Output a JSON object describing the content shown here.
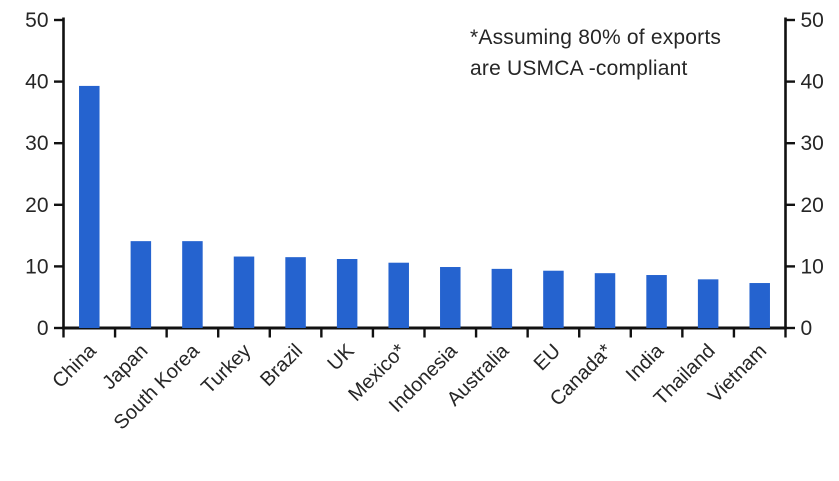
{
  "chart_data": {
    "type": "bar",
    "categories": [
      "China",
      "Japan",
      "South Korea",
      "Turkey",
      "Brazil",
      "UK",
      "Mexico*",
      "Indonesia",
      "Australia",
      "EU",
      "Canada*",
      "India",
      "Thailand",
      "Vietnam"
    ],
    "values": [
      39.3,
      14.1,
      14.1,
      11.6,
      11.5,
      11.2,
      10.6,
      9.9,
      9.6,
      9.3,
      8.9,
      8.6,
      7.9,
      7.3
    ],
    "title": "",
    "xlabel": "",
    "ylabel": "",
    "ylim": [
      0,
      50
    ],
    "yticks": [
      0,
      10,
      20,
      30,
      40,
      50
    ],
    "grid": false,
    "dual_axis": true,
    "legend": "none",
    "bar_color": "#2563cf",
    "axis_color": "#111111",
    "text_color": "#262626"
  },
  "annotation": {
    "line1": "*Assuming 80% of exports",
    "line2": "are USMCA -compliant"
  }
}
